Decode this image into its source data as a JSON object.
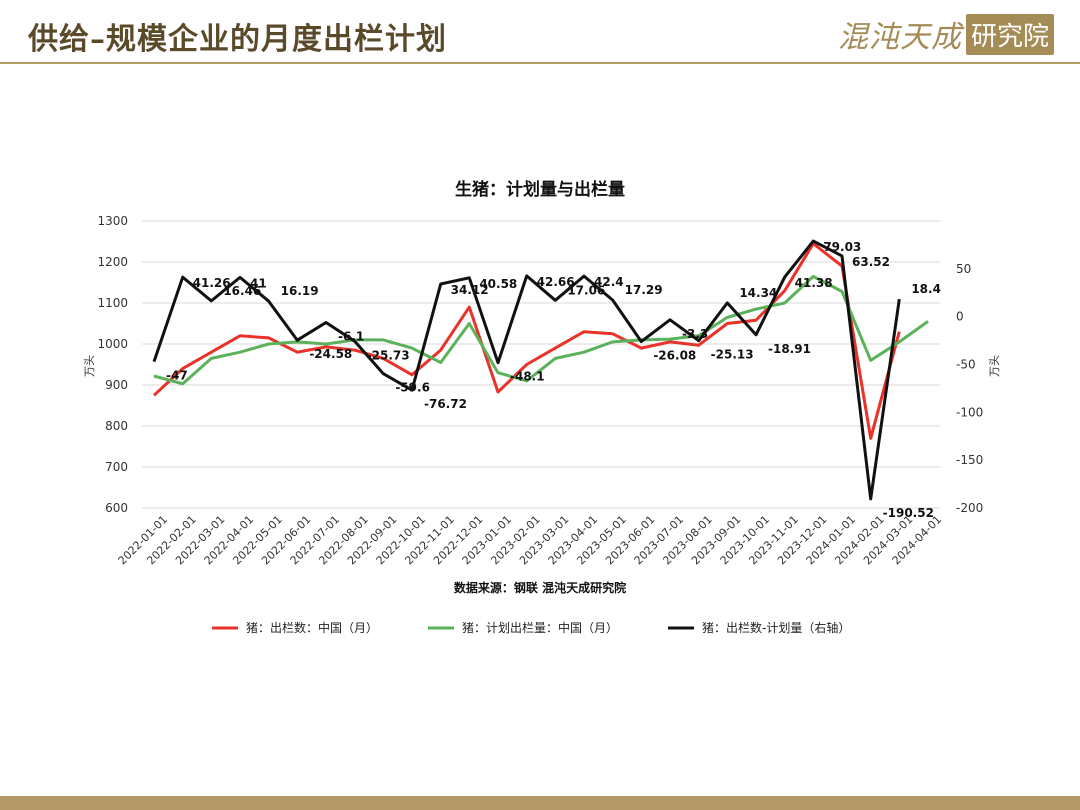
{
  "header": {
    "title": "供给–规模企业的月度出栏计划",
    "logo_text": "混沌天成",
    "logo_box_text": "研究院"
  },
  "chart_data": {
    "type": "line",
    "title": "生猪：计划量与出栏量",
    "source": "数据来源：钢联 混沌天成研究院",
    "ylabel_left": "万头",
    "ylabel_right": "万头",
    "ylim_left": [
      600,
      1300
    ],
    "yticks_left": [
      600,
      700,
      800,
      900,
      1000,
      1100,
      1200,
      1300
    ],
    "ylim_right": [
      -200,
      100
    ],
    "yticks_right": [
      -200,
      -150,
      -100,
      -50,
      0,
      50
    ],
    "x": [
      "2022-01-01",
      "2022-02-01",
      "2022-03-01",
      "2022-04-01",
      "2022-05-01",
      "2022-06-01",
      "2022-07-01",
      "2022-08-01",
      "2022-09-01",
      "2022-10-01",
      "2022-11-01",
      "2022-12-01",
      "2023-01-01",
      "2023-02-01",
      "2023-03-01",
      "2023-04-01",
      "2023-05-01",
      "2023-06-01",
      "2023-07-01",
      "2023-08-01",
      "2023-09-01",
      "2023-10-01",
      "2023-11-01",
      "2023-12-01",
      "2024-01-01",
      "2024-02-01",
      "2024-03-01",
      "2024-04-01"
    ],
    "legend_position": "bottom",
    "grid": true,
    "series": [
      {
        "name": "猪：出栏数：中国（月）",
        "axis": "left",
        "color": "#e8322a",
        "values": [
          875,
          940,
          980,
          1020,
          1015,
          980,
          993,
          985,
          965,
          925,
          985,
          1090,
          883,
          950,
          990,
          1030,
          1025,
          990,
          1005,
          997,
          1050,
          1058,
          1130,
          1245,
          1190,
          770,
          1030,
          null
        ]
      },
      {
        "name": "猪：计划出栏量：中国（月）",
        "axis": "left",
        "color": "#5bb25a",
        "values": [
          922,
          903,
          965,
          980,
          1000,
          1005,
          1000,
          1010,
          1010,
          990,
          955,
          1050,
          930,
          910,
          965,
          980,
          1005,
          1010,
          1012,
          1020,
          1065,
          1085,
          1100,
          1165,
          1128,
          960,
          1005,
          1055
        ]
      },
      {
        "name": "猪：出栏数-计划量（右轴）",
        "axis": "right",
        "color": "#111111",
        "values": [
          -47,
          41.26,
          16.46,
          41,
          16.19,
          -24.58,
          -6.1,
          -25.73,
          -59.6,
          -76.72,
          34.12,
          40.58,
          -48.1,
          42.66,
          17.06,
          42.4,
          17.29,
          -26.08,
          -3.3,
          -25.13,
          14.34,
          -18.91,
          41.38,
          79.03,
          63.52,
          -190.52,
          18.4,
          null
        ]
      }
    ],
    "data_labels": [
      "-47",
      "41.26",
      "16.46",
      "41",
      "16.19",
      "-24.58",
      "-6.1",
      "-25.73",
      "-59.6",
      "-76.72",
      "34.12",
      "40.58",
      "-48.1",
      "42.66",
      "17.06",
      "42.4",
      "17.29",
      "-26.08",
      "-3.3",
      "-25.13",
      "14.34",
      "-18.91",
      "41.38",
      "79.03",
      "63.52",
      "-190.52",
      "18.4"
    ],
    "colors": {
      "accent": "#b39a66",
      "title_text": "#5a4a2a",
      "grid": "#d9d9d9"
    }
  }
}
